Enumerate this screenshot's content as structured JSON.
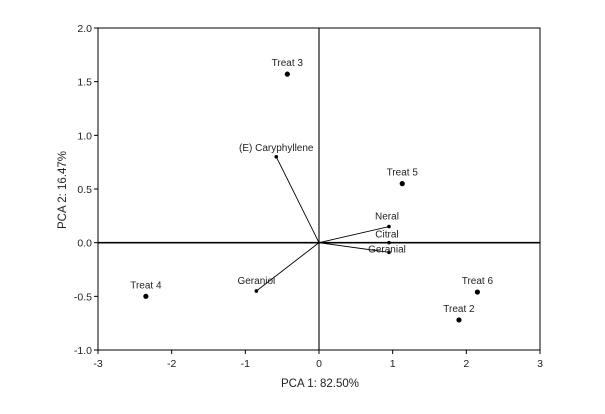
{
  "chart_data": {
    "type": "scatter",
    "title": "",
    "xlabel": "PCA 1: 82.50%",
    "ylabel": "PCA 2: 16.47%",
    "xlim": [
      -3,
      3
    ],
    "ylim": [
      -1.0,
      2.0
    ],
    "x_ticks": [
      "-3",
      "-2",
      "-1",
      "0",
      "1",
      "2",
      "3"
    ],
    "y_ticks": [
      "2.0",
      "1.5",
      "1.0",
      "0.5",
      "0.0",
      "-0.5",
      "-1.0"
    ],
    "grid": false,
    "zero_lines": true,
    "points": [
      {
        "label": "Treat 3",
        "x": -0.43,
        "y": 1.57
      },
      {
        "label": "Treat 5",
        "x": 1.13,
        "y": 0.55
      },
      {
        "label": "Treat 4",
        "x": -2.35,
        "y": -0.5
      },
      {
        "label": "Treat 6",
        "x": 2.15,
        "y": -0.46
      },
      {
        "label": "Treat 2",
        "x": 1.9,
        "y": -0.72
      }
    ],
    "vectors": [
      {
        "label": "(E) Caryphyllene",
        "x": -0.58,
        "y": 0.8
      },
      {
        "label": "Neral",
        "x": 0.95,
        "y": 0.15
      },
      {
        "label": "Citral",
        "x": 0.95,
        "y": 0.0
      },
      {
        "label": "Geranial",
        "x": 0.95,
        "y": -0.09
      },
      {
        "label": "Geraniol",
        "x": -0.85,
        "y": -0.45
      }
    ],
    "colors": {
      "axis": "#000000",
      "points": "#000000",
      "vectors": "#000000"
    }
  }
}
